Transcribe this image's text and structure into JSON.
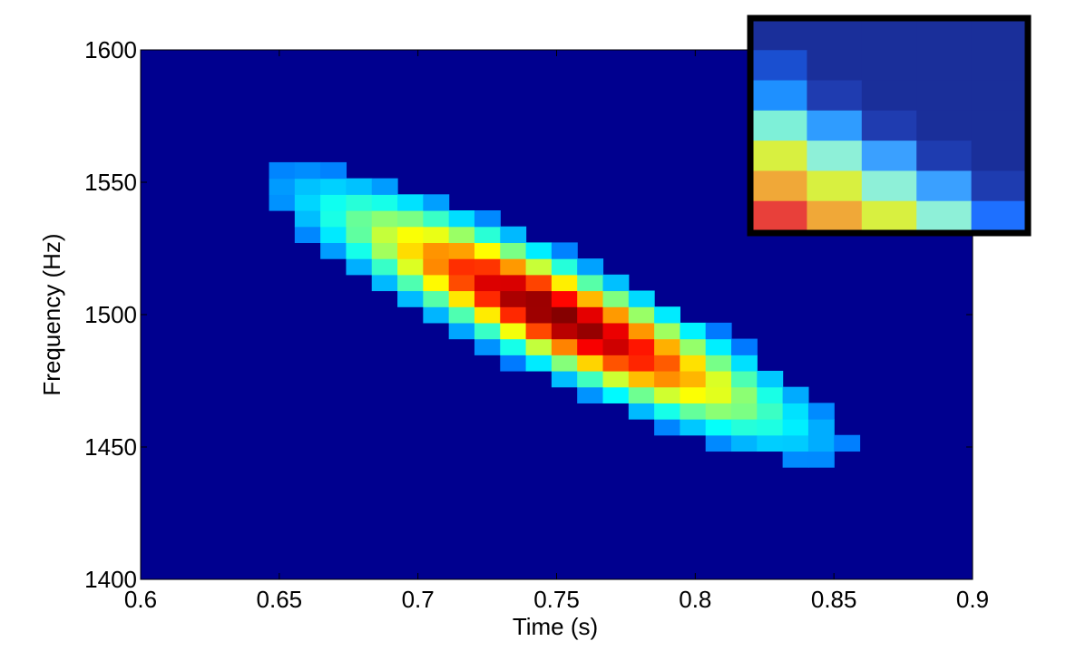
{
  "chart_data": {
    "type": "heatmap",
    "title": "",
    "xlabel": "Time (s)",
    "ylabel": "Frequency (Hz)",
    "xlim": [
      0.6,
      0.9
    ],
    "ylim": [
      1400,
      1600
    ],
    "xticks": [
      "0.6",
      "0.65",
      "0.7",
      "0.75",
      "0.8",
      "0.85",
      "0.9"
    ],
    "yticks": [
      "1400",
      "1450",
      "1500",
      "1550",
      "1600"
    ],
    "colormap": "jet",
    "background_color": "#00008f",
    "cell_width_s": 0.00926,
    "cell_height_hz": 6.06,
    "peak": {
      "time_s": 0.75,
      "frequency_hz": 1500
    },
    "spread": {
      "major_sd": 0.0595,
      "minor_sd": 0.0118,
      "slope_hz_per_s": -500
    },
    "intensity_threshold": 0.14,
    "grid": false,
    "inset": {
      "description_colors": [
        [
          "#1a2f9a",
          "#1a2f9a",
          "#1a2f9a",
          "#1a2f9a",
          "#1a2f9a"
        ],
        [
          "#1a4fd0",
          "#1a2f9a",
          "#1a2f9a",
          "#1a2f9a",
          "#1a2f9a"
        ],
        [
          "#1e90ff",
          "#1f3cb0",
          "#1a2f9a",
          "#1a2f9a",
          "#1a2f9a"
        ],
        [
          "#7ef0d8",
          "#2f9cff",
          "#1f3cb0",
          "#1a2f9a",
          "#1a2f9a"
        ],
        [
          "#d8f040",
          "#8ef0d8",
          "#3aa0ff",
          "#1e3cb0",
          "#1a2f9a"
        ],
        [
          "#f0a838",
          "#d8f040",
          "#8ef0d8",
          "#3aa0ff",
          "#1e3cb0"
        ],
        [
          "#e8403a",
          "#f0a838",
          "#d8f040",
          "#8ef0d8",
          "#1e70ff"
        ]
      ]
    }
  }
}
